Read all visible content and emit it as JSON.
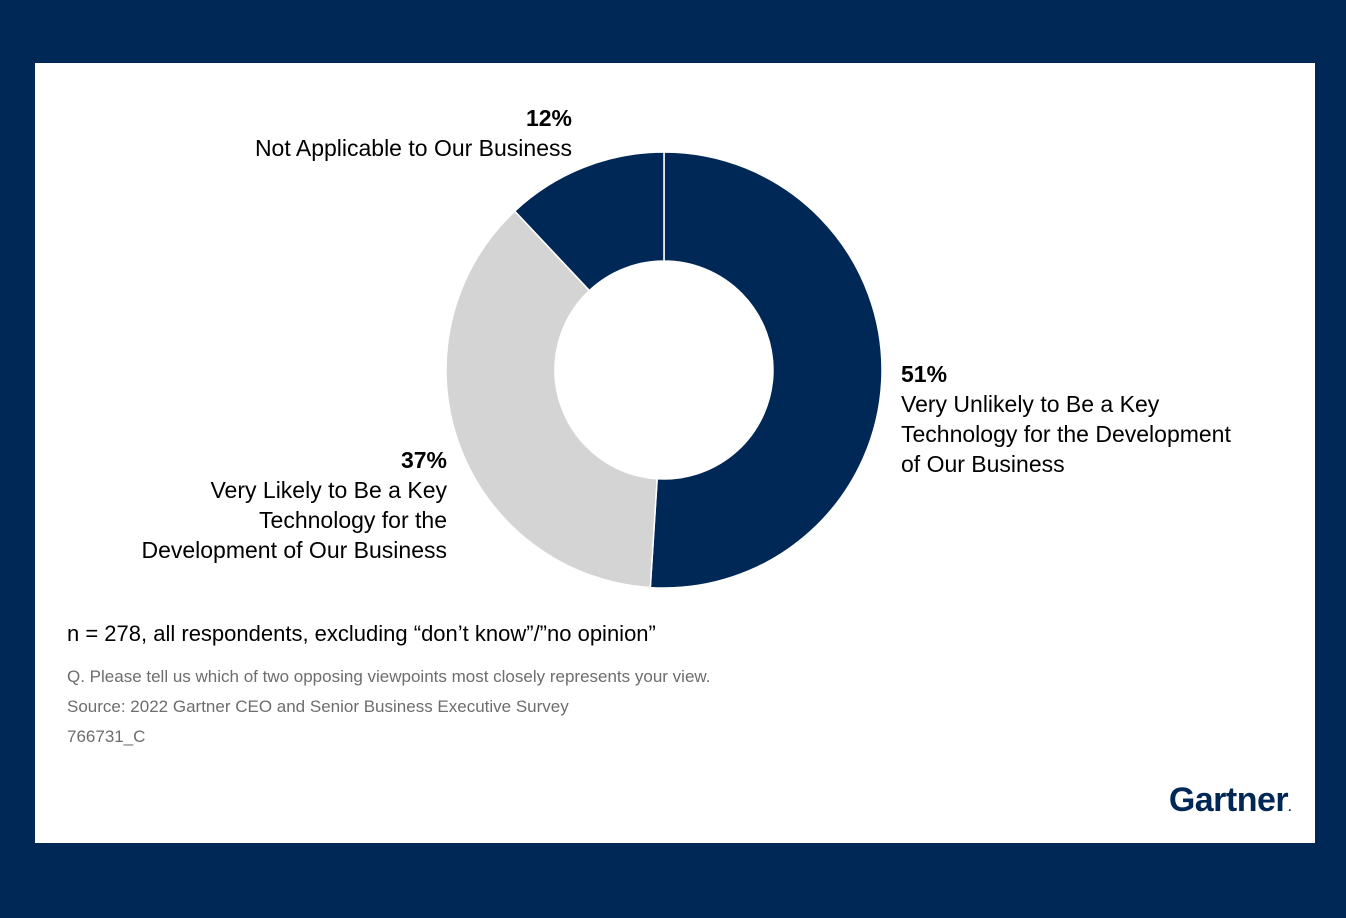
{
  "chart_data": {
    "type": "pie",
    "variant": "donut",
    "slices": [
      {
        "name": "Very Unlikely to Be a Key Technology for the Development of Our Business",
        "value": 51,
        "label": "51%",
        "color": "#002856"
      },
      {
        "name": "Very Likely to Be a Key Technology for the Development of Our Business",
        "value": 37,
        "label": "37%",
        "color": "#d4d4d4"
      },
      {
        "name": "Not Applicable to Our Business",
        "value": 12,
        "label": "12%",
        "color": "#002856"
      }
    ],
    "labels": {
      "na": {
        "pct": "12%",
        "lines": [
          "Not Applicable to Our Business"
        ]
      },
      "unlikely": {
        "pct": "51%",
        "lines": [
          "Very Unlikely to Be a Key",
          "Technology for the Development",
          "of Our Business"
        ]
      },
      "likely": {
        "pct": "37%",
        "lines": [
          "Very Likely to Be a Key",
          "Technology for the",
          "Development of Our Business"
        ]
      }
    }
  },
  "footnote": "n = 278, all respondents, excluding “don’t know”/”no opinion”",
  "question": "Q. Please tell us which of two opposing viewpoints most closely represents your view.",
  "source": "Source: 2022 Gartner CEO and Senior Business Executive Survey",
  "code": "766731_C",
  "logo": "Gartner",
  "colors": {
    "background": "#002856",
    "card": "#ffffff",
    "primary": "#002856",
    "secondary": "#d4d4d4"
  }
}
